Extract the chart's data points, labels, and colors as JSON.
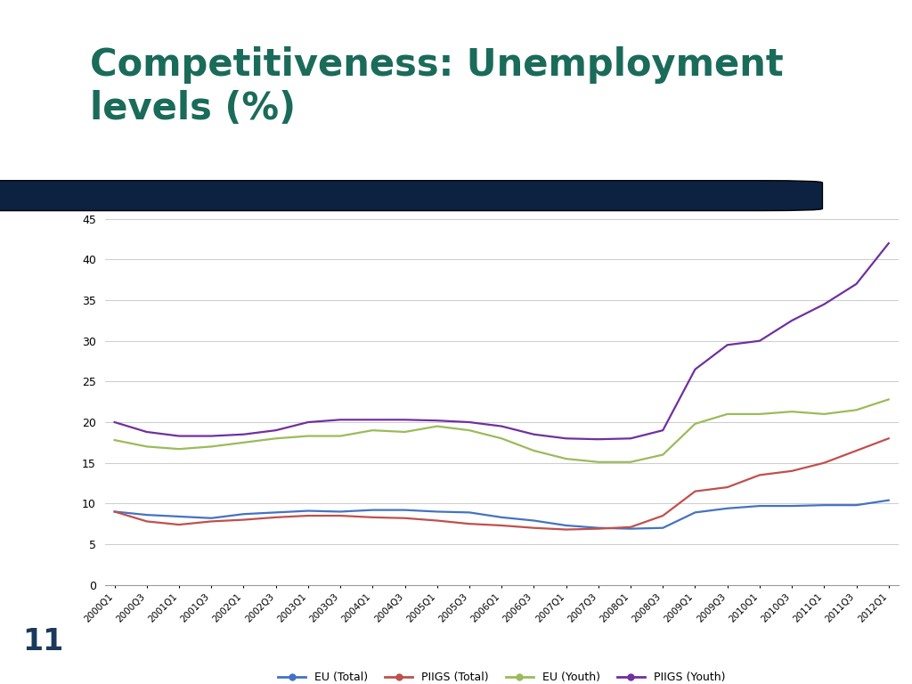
{
  "title": "Competitiveness: Unemployment\nlevels (%)",
  "title_color": "#1a6b5a",
  "bg_left_color": "#a8c8e8",
  "bg_right_color": "#ffffff",
  "header_bar_color": "#0d2240",
  "slide_number": "11",
  "slide_number_color": "#1a3a5c",
  "x_labels": [
    "2000Q1",
    "2000Q3",
    "2001Q1",
    "2001Q3",
    "2002Q1",
    "2002Q3",
    "2003Q1",
    "2003Q3",
    "2004Q1",
    "2004Q3",
    "2005Q1",
    "2005Q3",
    "2006Q1",
    "2006Q3",
    "2007Q1",
    "2007Q3",
    "2008Q1",
    "2008Q3",
    "2009Q1",
    "2009Q3",
    "2010Q1",
    "2010Q3",
    "2011Q1",
    "2011Q3",
    "2012Q1"
  ],
  "eu_total": [
    9.0,
    8.6,
    8.4,
    8.2,
    8.7,
    8.9,
    9.1,
    9.0,
    9.2,
    9.2,
    9.0,
    8.9,
    8.3,
    7.9,
    7.3,
    7.0,
    6.9,
    7.0,
    8.9,
    9.4,
    9.7,
    9.7,
    9.8,
    9.8,
    10.4
  ],
  "piigs_total": [
    9.0,
    7.8,
    7.4,
    7.8,
    8.0,
    8.3,
    8.5,
    8.5,
    8.3,
    8.2,
    7.9,
    7.5,
    7.3,
    7.0,
    6.8,
    6.9,
    7.1,
    8.5,
    11.5,
    12.0,
    13.5,
    14.0,
    15.0,
    16.5,
    18.0
  ],
  "eu_youth": [
    17.8,
    17.0,
    16.7,
    17.0,
    17.5,
    18.0,
    18.3,
    18.3,
    19.0,
    18.8,
    19.5,
    19.0,
    18.0,
    16.5,
    15.5,
    15.1,
    15.1,
    16.0,
    19.8,
    21.0,
    21.0,
    21.3,
    21.0,
    21.5,
    22.8
  ],
  "piigs_youth": [
    20.0,
    18.8,
    18.3,
    18.3,
    18.5,
    19.0,
    20.0,
    20.3,
    20.3,
    20.3,
    20.2,
    20.0,
    19.5,
    18.5,
    18.0,
    17.9,
    18.0,
    19.0,
    26.5,
    29.5,
    30.0,
    32.5,
    34.5,
    37.0,
    42.0
  ],
  "colors": {
    "eu_total": "#4472c4",
    "piigs_total": "#c0504d",
    "eu_youth": "#9bbb59",
    "piigs_youth": "#7030a0"
  },
  "legend_labels": [
    "EU (Total)",
    "PIIGS (Total)",
    "EU (Youth)",
    "PIIGS (Youth)"
  ],
  "ylim": [
    0,
    45
  ],
  "yticks": [
    0,
    5,
    10,
    15,
    20,
    25,
    30,
    35,
    40,
    45
  ]
}
